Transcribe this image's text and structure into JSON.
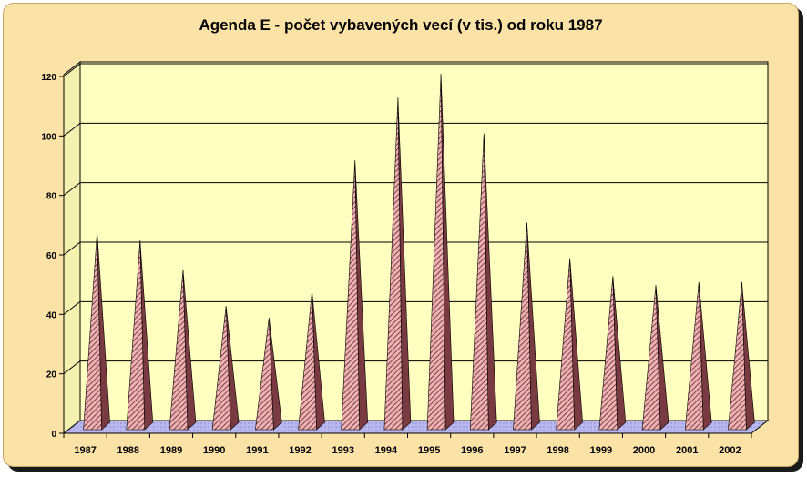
{
  "chart_data": {
    "type": "bar",
    "title": "Agenda E - počet vybavených vecí (v tis.) od roku 1987",
    "xlabel": "",
    "ylabel": "",
    "categories": [
      "1987",
      "1988",
      "1989",
      "1990",
      "1991",
      "1992",
      "1993",
      "1994",
      "1995",
      "1996",
      "1997",
      "1998",
      "1999",
      "2000",
      "2001",
      "2002"
    ],
    "values": [
      66,
      63,
      53,
      41,
      37,
      46,
      90,
      111,
      119,
      99,
      69,
      57,
      51,
      48,
      49,
      49
    ],
    "ylim": [
      0,
      120
    ],
    "yticks": [
      "0",
      "20",
      "40",
      "60",
      "80",
      "100",
      "120"
    ],
    "grid": true,
    "legend": "none",
    "colors": {
      "plot_wall": "#ffffc0",
      "floor": "#b9b9f0",
      "bar_fill": "#efb1b1",
      "bar_hatch": "#5b2730",
      "bar_side": "#7a3a42",
      "background": "#fbe3a8"
    }
  }
}
